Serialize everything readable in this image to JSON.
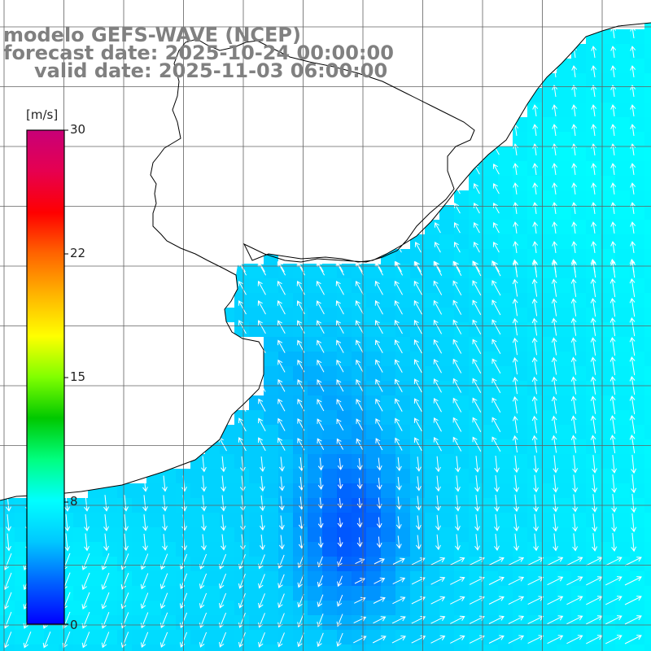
{
  "title": {
    "line1": "modelo GEFS-WAVE (NCEP)",
    "line2": "forecast date: 2025-10-24 00:00:00",
    "line3": "valid date: 2025-11-03 06:00:00"
  },
  "colorbar": {
    "unit": "[m/s]",
    "ticks": [
      "30",
      "22",
      "15",
      "8",
      "0"
    ],
    "stops": [
      "#0000ff",
      "#0060ff",
      "#00c8ff",
      "#00ffff",
      "#00ff80",
      "#00c800",
      "#80ff00",
      "#ffff00",
      "#ffb400",
      "#ff6400",
      "#ff0000",
      "#e60050",
      "#c80078"
    ]
  },
  "colors": {
    "land": "#ffffff",
    "grid": "#606060",
    "coast": "#000000",
    "arrow": "#ffffff",
    "title": "#808080"
  }
}
